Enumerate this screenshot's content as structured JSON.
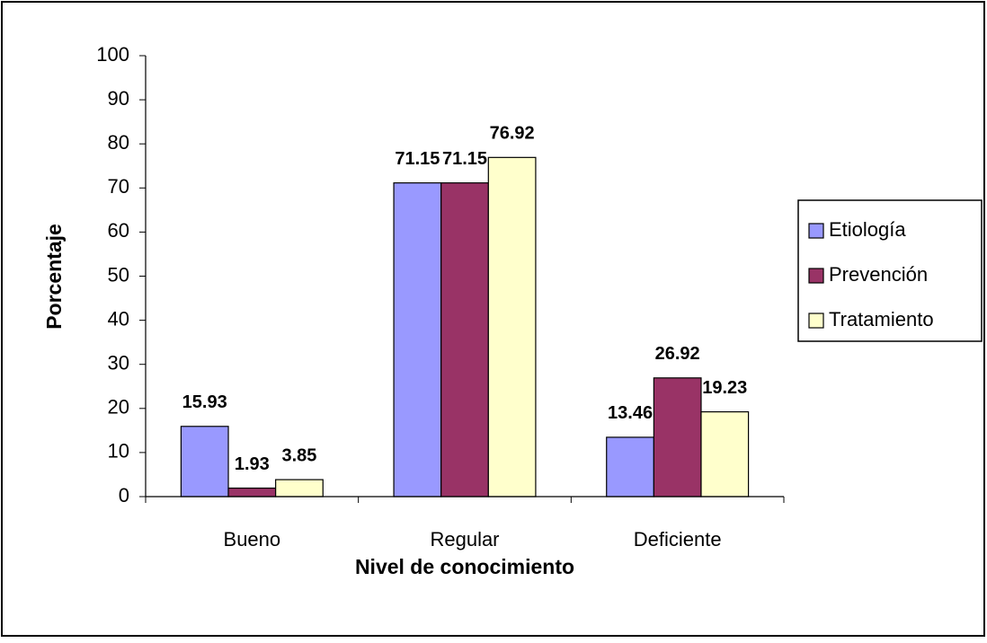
{
  "chart_data": {
    "type": "bar",
    "x_label": "Nivel de conocimiento",
    "y_label": "Porcentaje",
    "categories": [
      "Bueno",
      "Regular",
      "Deficiente"
    ],
    "series": [
      {
        "name": "Etiología",
        "color": "#9999ff",
        "values": [
          15.93,
          71.15,
          13.46
        ]
      },
      {
        "name": "Prevención",
        "color": "#993366",
        "values": [
          1.93,
          71.15,
          26.92
        ]
      },
      {
        "name": "Tratamiento",
        "color": "#ffffcc",
        "values": [
          3.85,
          76.92,
          19.23
        ]
      }
    ],
    "ylim": [
      0,
      100
    ],
    "yticks": [
      0,
      10,
      20,
      30,
      40,
      50,
      60,
      70,
      80,
      90,
      100
    ],
    "grid": false,
    "legend": "right"
  }
}
